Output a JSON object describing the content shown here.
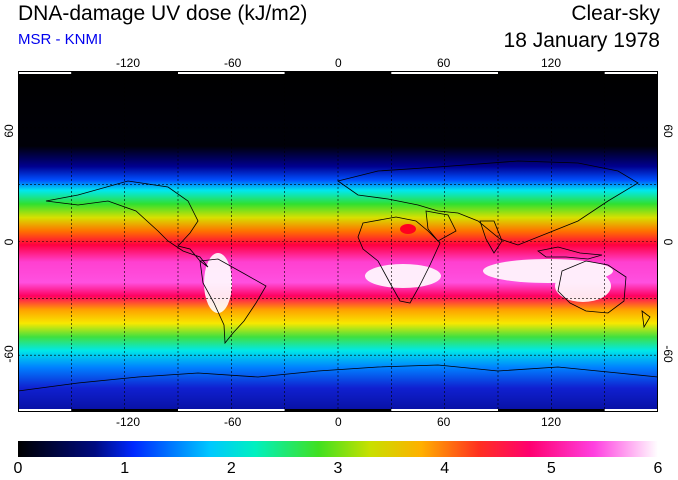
{
  "header": {
    "title": "DNA-damage UV dose (kJ/m2)",
    "subtitle": "MSR - KNMI",
    "condition": "Clear-sky",
    "date": "18 January 1978"
  },
  "map": {
    "lon_ticks_top": [
      "-120",
      "-60",
      "0",
      "60",
      "120"
    ],
    "lon_ticks_bottom": [
      "-120",
      "-60",
      "0",
      "60",
      "120"
    ],
    "lat_ticks": [
      "60",
      "0",
      "-60"
    ],
    "projection": "equirectangular",
    "grid": true,
    "lon_range": [
      -180,
      180
    ],
    "lat_range": [
      -90,
      90
    ]
  },
  "colorbar": {
    "ticks": [
      "0",
      "1",
      "2",
      "3",
      "4",
      "5",
      "6"
    ],
    "range": [
      0,
      6
    ],
    "colors": [
      "#000000",
      "#0018c8",
      "#00f0f0",
      "#30e000",
      "#f0d000",
      "#ff0020",
      "#ff40e0",
      "#ffffff"
    ]
  }
}
